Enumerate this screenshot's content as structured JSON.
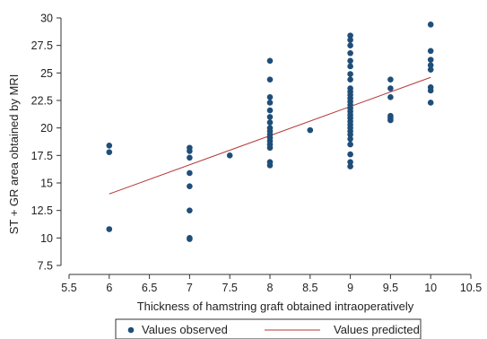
{
  "chart_data": {
    "type": "scatter",
    "xlabel": "Thickness of hamstring graft obtained intraoperatively",
    "ylabel": "ST + GR area obtained by MRI",
    "xlim": [
      5.5,
      10.5
    ],
    "ylim": [
      7.5,
      30
    ],
    "xticks": [
      "5.5",
      "6",
      "6.5",
      "7",
      "7.5",
      "8",
      "8.5",
      "9",
      "9.5",
      "10",
      "10.5"
    ],
    "yticks": [
      "7.5",
      "10",
      "12.5",
      "15",
      "17.5",
      "20",
      "22.5",
      "25",
      "27.5",
      "30"
    ],
    "grid": false,
    "legend_position": "bottom",
    "series": [
      {
        "name": "Values observed",
        "style": "markers",
        "color": "#1f4e79",
        "points": [
          [
            6,
            18.4
          ],
          [
            6,
            17.8
          ],
          [
            6,
            10.8
          ],
          [
            7,
            18.2
          ],
          [
            7,
            17.9
          ],
          [
            7,
            17.3
          ],
          [
            7,
            15.9
          ],
          [
            7,
            14.7
          ],
          [
            7,
            12.5
          ],
          [
            7,
            10.0
          ],
          [
            7,
            9.9
          ],
          [
            7.5,
            17.5
          ],
          [
            8,
            26.1
          ],
          [
            8,
            24.4
          ],
          [
            8,
            22.8
          ],
          [
            8,
            22.3
          ],
          [
            8,
            21.6
          ],
          [
            8,
            21.0
          ],
          [
            8,
            20.5
          ],
          [
            8,
            20.0
          ],
          [
            8,
            19.7
          ],
          [
            8,
            19.4
          ],
          [
            8,
            19.1
          ],
          [
            8,
            18.8
          ],
          [
            8,
            18.5
          ],
          [
            8,
            18.2
          ],
          [
            8,
            16.9
          ],
          [
            8,
            16.6
          ],
          [
            8.5,
            19.8
          ],
          [
            9,
            28.4
          ],
          [
            9,
            28.0
          ],
          [
            9,
            27.5
          ],
          [
            9,
            26.8
          ],
          [
            9,
            26.1
          ],
          [
            9,
            25.6
          ],
          [
            9,
            24.9
          ],
          [
            9,
            24.4
          ],
          [
            9,
            23.6
          ],
          [
            9,
            23.3
          ],
          [
            9,
            23.0
          ],
          [
            9,
            22.7
          ],
          [
            9,
            22.4
          ],
          [
            9,
            22.1
          ],
          [
            9,
            21.8
          ],
          [
            9,
            21.5
          ],
          [
            9,
            21.2
          ],
          [
            9,
            20.9
          ],
          [
            9,
            20.6
          ],
          [
            9,
            20.3
          ],
          [
            9,
            20.0
          ],
          [
            9,
            19.7
          ],
          [
            9,
            19.4
          ],
          [
            9,
            19.0
          ],
          [
            9,
            18.5
          ],
          [
            9,
            17.6
          ],
          [
            9,
            16.9
          ],
          [
            9,
            16.5
          ],
          [
            9.5,
            24.4
          ],
          [
            9.5,
            23.6
          ],
          [
            9.5,
            22.8
          ],
          [
            9.5,
            21.1
          ],
          [
            9.5,
            20.9
          ],
          [
            9.5,
            20.7
          ],
          [
            10,
            29.4
          ],
          [
            10,
            27.0
          ],
          [
            10,
            26.2
          ],
          [
            10,
            25.7
          ],
          [
            10,
            25.3
          ],
          [
            10,
            23.7
          ],
          [
            10,
            23.4
          ],
          [
            10,
            22.3
          ]
        ]
      },
      {
        "name": "Values predicted",
        "style": "line",
        "color": "#b53535",
        "points": [
          [
            6,
            14.0
          ],
          [
            10,
            24.6
          ]
        ]
      }
    ]
  }
}
